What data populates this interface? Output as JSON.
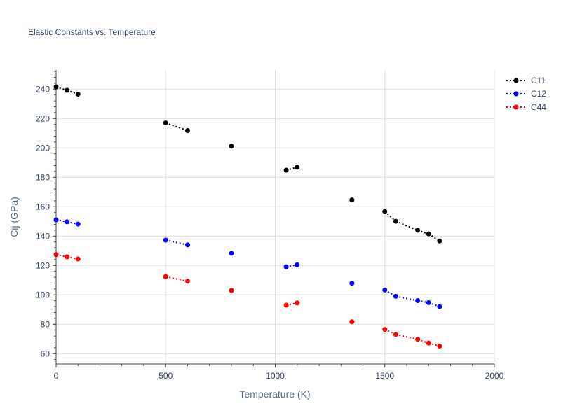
{
  "chart_data": {
    "type": "line",
    "title": "Elastic Constants vs. Temperature",
    "xlabel": "Temperature (K)",
    "ylabel": "Cij (GPa)",
    "xlim": [
      0,
      2000
    ],
    "ylim": [
      53,
      253
    ],
    "xticks": [
      0,
      500,
      1000,
      1500,
      2000
    ],
    "yticks": [
      60,
      80,
      100,
      120,
      140,
      160,
      180,
      200,
      220,
      240
    ],
    "grid": true,
    "legend_position": "top-right",
    "series": [
      {
        "name": "C11",
        "color": "#000000",
        "points": [
          [
            0,
            241.5
          ],
          [
            50,
            239.2
          ],
          [
            100,
            236.6
          ],
          [
            500,
            217.0
          ],
          [
            600,
            211.8
          ],
          [
            800,
            201.2
          ],
          [
            1050,
            184.9
          ],
          [
            1100,
            186.9
          ],
          [
            1350,
            164.6
          ],
          [
            1500,
            156.8
          ],
          [
            1550,
            150.1
          ],
          [
            1650,
            144.0
          ],
          [
            1700,
            141.5
          ],
          [
            1750,
            136.7
          ]
        ]
      },
      {
        "name": "C12",
        "color": "#0000ff",
        "points": [
          [
            0,
            151.1
          ],
          [
            50,
            149.7
          ],
          [
            100,
            148.2
          ],
          [
            500,
            137.3
          ],
          [
            600,
            134.0
          ],
          [
            800,
            128.3
          ],
          [
            1050,
            119.1
          ],
          [
            1100,
            120.5
          ],
          [
            1350,
            107.9
          ],
          [
            1500,
            103.3
          ],
          [
            1550,
            99.0
          ],
          [
            1650,
            96.1
          ],
          [
            1700,
            94.7
          ],
          [
            1750,
            92.0
          ]
        ]
      },
      {
        "name": "C44",
        "color": "#ff0000",
        "points": [
          [
            0,
            127.4
          ],
          [
            50,
            125.9
          ],
          [
            100,
            124.4
          ],
          [
            500,
            112.4
          ],
          [
            600,
            109.3
          ],
          [
            800,
            103.0
          ],
          [
            1050,
            93.0
          ],
          [
            1100,
            94.5
          ],
          [
            1350,
            81.7
          ],
          [
            1500,
            76.5
          ],
          [
            1550,
            73.1
          ],
          [
            1650,
            69.8
          ],
          [
            1700,
            67.2
          ],
          [
            1750,
            65.1
          ]
        ]
      }
    ]
  }
}
